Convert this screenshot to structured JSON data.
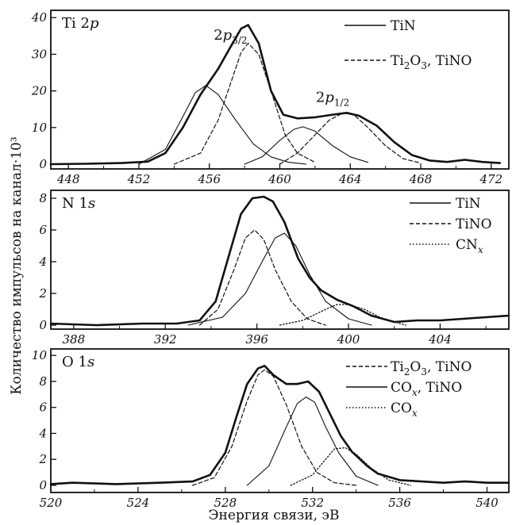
{
  "figure": {
    "ylabel": "Количество импульсов на канал·10³",
    "xlabel": "Энергия связи, эВ"
  },
  "chart_data": [
    {
      "type": "line",
      "title": "Ti 2p",
      "xlim": [
        447,
        473
      ],
      "ylim": [
        0,
        42
      ],
      "xticks": [
        "448",
        "452",
        "456",
        "460",
        "464",
        "468",
        "472"
      ],
      "yticks": [
        "0",
        "10",
        "20",
        "30",
        "40"
      ],
      "annotations": [
        {
          "text": "2p3/2",
          "x": 457.2,
          "y": 34
        },
        {
          "text": "2p1/2",
          "x": 463.0,
          "y": 17
        }
      ],
      "legend": [
        {
          "label": "TiN",
          "style": "solid"
        },
        {
          "label": "Ti2O3, TiNO",
          "style": "dashed"
        }
      ],
      "series": [
        {
          "name": "envelope",
          "style": "thick",
          "x": [
            447,
            449,
            451,
            452.5,
            453.5,
            454.5,
            455.5,
            456.5,
            457.2,
            457.8,
            458.2,
            458.8,
            459.5,
            460.2,
            461,
            462,
            463,
            463.8,
            464.5,
            465.5,
            466.5,
            467.5,
            468.5,
            469.5,
            470.5,
            471.5,
            472.5
          ],
          "y": [
            0,
            0.1,
            0.3,
            0.7,
            3,
            10,
            19,
            26,
            32,
            37,
            38,
            33,
            20,
            13.5,
            12.5,
            12.8,
            13.5,
            14,
            13.2,
            10.5,
            6,
            2.5,
            1,
            0.6,
            1.2,
            0.6,
            0.3
          ]
        },
        {
          "name": "TiN 2p3/2",
          "style": "solid",
          "x": [
            452,
            453.5,
            454.5,
            455.2,
            455.8,
            456.5,
            457.5,
            458.5,
            459.5,
            460.5,
            461.5
          ],
          "y": [
            0,
            4,
            13,
            19.5,
            21.5,
            19,
            12,
            5.5,
            2,
            0.5,
            0
          ]
        },
        {
          "name": "TiNO 2p3/2",
          "style": "dashed",
          "x": [
            454,
            455.5,
            456.5,
            457.2,
            457.8,
            458.2,
            458.8,
            459.5,
            460.3,
            461,
            462
          ],
          "y": [
            0,
            3,
            12,
            22,
            30.5,
            33,
            30,
            20,
            8,
            3,
            0.5
          ]
        },
        {
          "name": "TiN 2p1/2",
          "style": "solid",
          "x": [
            458,
            459,
            460,
            460.8,
            461.3,
            462,
            463,
            464,
            465
          ],
          "y": [
            0,
            2,
            6.5,
            9.5,
            10.2,
            9,
            5,
            2,
            0.5
          ]
        },
        {
          "name": "TiNO 2p1/2",
          "style": "dashed",
          "x": [
            460,
            461,
            462,
            462.8,
            463.6,
            464.2,
            465,
            466,
            467,
            468
          ],
          "y": [
            0,
            3,
            8,
            12,
            14,
            13.5,
            10,
            5,
            1.5,
            0.3
          ]
        }
      ]
    },
    {
      "type": "line",
      "title": "N 1s",
      "xlim": [
        387,
        407
      ],
      "ylim": [
        0,
        8.5
      ],
      "xticks": [
        "388",
        "392",
        "396",
        "400",
        "404"
      ],
      "yticks": [
        "0",
        "2",
        "4",
        "6",
        "8"
      ],
      "legend": [
        {
          "label": "TiN",
          "style": "solid"
        },
        {
          "label": "TiNO",
          "style": "dashed"
        },
        {
          "label": "CNx",
          "style": "dotted"
        }
      ],
      "series": [
        {
          "name": "envelope",
          "style": "thick",
          "x": [
            387,
            389,
            391,
            392.5,
            393.5,
            394.2,
            394.8,
            395.3,
            395.8,
            396.3,
            396.7,
            397.2,
            397.8,
            398.3,
            398.8,
            399.5,
            400.2,
            401,
            402,
            403,
            404,
            405,
            406,
            407
          ],
          "y": [
            0.1,
            0,
            0.1,
            0.1,
            0.3,
            1.5,
            4.5,
            7,
            8,
            8.1,
            7.8,
            6.5,
            4.2,
            3,
            2.2,
            1.6,
            1.2,
            0.6,
            0.2,
            0.3,
            0.3,
            0.4,
            0.5,
            0.6
          ]
        },
        {
          "name": "TiN",
          "style": "solid",
          "x": [
            393,
            394.5,
            395.5,
            396.3,
            396.8,
            397.2,
            397.7,
            398.3,
            399,
            400,
            401
          ],
          "y": [
            0,
            0.5,
            2,
            4.2,
            5.5,
            5.8,
            5,
            3.2,
            1.5,
            0.4,
            0
          ]
        },
        {
          "name": "TiNO",
          "style": "dashed",
          "x": [
            393.5,
            394.3,
            395,
            395.5,
            395.9,
            396.3,
            396.8,
            397.5,
            398.2,
            399
          ],
          "y": [
            0,
            1,
            3.5,
            5.5,
            6,
            5.4,
            3.5,
            1.5,
            0.4,
            0
          ]
        },
        {
          "name": "CNx",
          "style": "dotted",
          "x": [
            397,
            398,
            399,
            399.5,
            400,
            400.7,
            401.5,
            402.5
          ],
          "y": [
            0,
            0.3,
            1,
            1.3,
            1.3,
            1,
            0.4,
            0
          ]
        }
      ]
    },
    {
      "type": "line",
      "title": "O 1s",
      "xlim": [
        520,
        541
      ],
      "ylim": [
        0,
        10.5
      ],
      "xticks": [
        "520",
        "524",
        "528",
        "532",
        "536",
        "540"
      ],
      "yticks": [
        "0",
        "2",
        "4",
        "6",
        "8",
        "10"
      ],
      "legend": [
        {
          "label": "Ti2O3, TiNO",
          "style": "dashed"
        },
        {
          "label": "COx, TiNO",
          "style": "solid"
        },
        {
          "label": "COx",
          "style": "dotted"
        }
      ],
      "series": [
        {
          "name": "envelope",
          "style": "thick",
          "x": [
            520,
            521,
            523,
            525,
            526.5,
            527.3,
            528,
            528.5,
            529,
            529.5,
            529.8,
            530.2,
            530.8,
            531.3,
            531.8,
            532.3,
            532.8,
            533.3,
            533.8,
            534.5,
            535,
            536,
            537,
            538,
            539,
            540,
            541
          ],
          "y": [
            0.1,
            0.2,
            0.1,
            0.2,
            0.3,
            0.8,
            2.5,
            5.2,
            7.8,
            9,
            9.2,
            8.5,
            7.8,
            7.8,
            8,
            7.2,
            5.5,
            3.8,
            2.6,
            1.5,
            0.9,
            0.4,
            0.3,
            0.2,
            0.3,
            0.2,
            0.2
          ]
        },
        {
          "name": "Ti2O3, TiNO",
          "style": "dashed",
          "x": [
            526.5,
            527.5,
            528.3,
            529,
            529.5,
            529.8,
            530.2,
            530.8,
            531.5,
            532.2,
            533,
            534
          ],
          "y": [
            0,
            0.6,
            3,
            6.5,
            8.5,
            8.9,
            8.4,
            6.2,
            3,
            1,
            0.2,
            0
          ]
        },
        {
          "name": "COx, TiNO",
          "style": "solid",
          "x": [
            529,
            530,
            530.8,
            531.3,
            531.7,
            532.1,
            532.6,
            533.2,
            534,
            535
          ],
          "y": [
            0,
            1.5,
            4.5,
            6.3,
            6.8,
            6.4,
            4.5,
            2.5,
            0.7,
            0
          ]
        },
        {
          "name": "COx",
          "style": "dotted",
          "x": [
            531,
            532,
            532.6,
            533,
            533.5,
            534,
            534.7,
            535.5,
            536.5
          ],
          "y": [
            0,
            0.8,
            2,
            2.8,
            2.9,
            2.4,
            1.3,
            0.4,
            0
          ]
        }
      ]
    }
  ]
}
